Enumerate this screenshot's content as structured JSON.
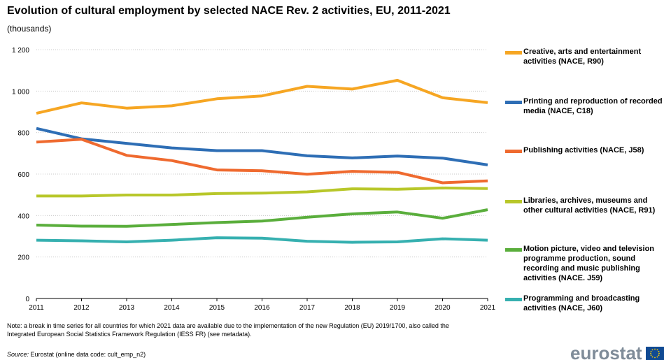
{
  "header": {
    "title": "Evolution of cultural employment  by selected NACE Rev. 2 activities, EU, 2011-2021",
    "subtitle": "(thousands)"
  },
  "chart_data": {
    "type": "line",
    "title": "Evolution of cultural employment  by selected NACE Rev. 2 activities, EU, 2011-2021",
    "subtitle": "(thousands)",
    "x": [
      "2011",
      "2012",
      "2013",
      "2014",
      "2015",
      "2016",
      "2017",
      "2018",
      "2019",
      "2020",
      "2021"
    ],
    "ylim": [
      0,
      1200
    ],
    "yticks": [
      0,
      200,
      400,
      600,
      800,
      1000,
      1200
    ],
    "ytick_labels": [
      "0",
      "200",
      "400",
      "600",
      "800",
      "1 000",
      "1 200"
    ],
    "grid": true,
    "legend_position": "right",
    "series": [
      {
        "name": "Creative, arts and entertainment activities (NACE, R90)",
        "color": "#f6a623",
        "values": [
          893,
          943,
          918,
          929,
          963,
          977,
          1023,
          1010,
          1052,
          968,
          944
        ]
      },
      {
        "name": "Printing and reproduction of recorded media (NACE, C18)",
        "color": "#2e6eb5",
        "values": [
          820,
          770,
          748,
          726,
          713,
          713,
          688,
          678,
          687,
          677,
          644
        ]
      },
      {
        "name": "Publishing activities (NACE, J58)",
        "color": "#ef6a2f",
        "values": [
          754,
          768,
          690,
          665,
          620,
          616,
          599,
          613,
          608,
          558,
          567
        ]
      },
      {
        "name": "Libraries, archives, museums and other cultural activities (NACE, R91)",
        "color": "#b8c72a",
        "values": [
          494,
          494,
          499,
          499,
          506,
          508,
          514,
          529,
          527,
          533,
          530
        ]
      },
      {
        "name": "Motion picture, video and television programme production, sound recording and music publishing activities (NACE. J59)",
        "color": "#5aae3c",
        "values": [
          354,
          349,
          348,
          357,
          366,
          373,
          392,
          408,
          417,
          387,
          428
        ]
      },
      {
        "name": "Programming and broadcasting activities (NACE, J60)",
        "color": "#36b0b0",
        "values": [
          281,
          278,
          273,
          281,
          293,
          291,
          276,
          271,
          273,
          288,
          281
        ]
      }
    ]
  },
  "note": "Note: a break in time series for all countries for which 2021 data are available due to the implementation of the new Regulation (EU) 2019/1700,  also called the Integrated  European Social Statistics Framework Regulation (IESS FR) (see metadata).",
  "source": {
    "label": "Source:",
    "text": " Eurostat (online data code: cult_emp_n2)"
  },
  "logo": {
    "text": "eurostat",
    "flag_color": "#104a93",
    "text_color": "#7f8c99"
  }
}
